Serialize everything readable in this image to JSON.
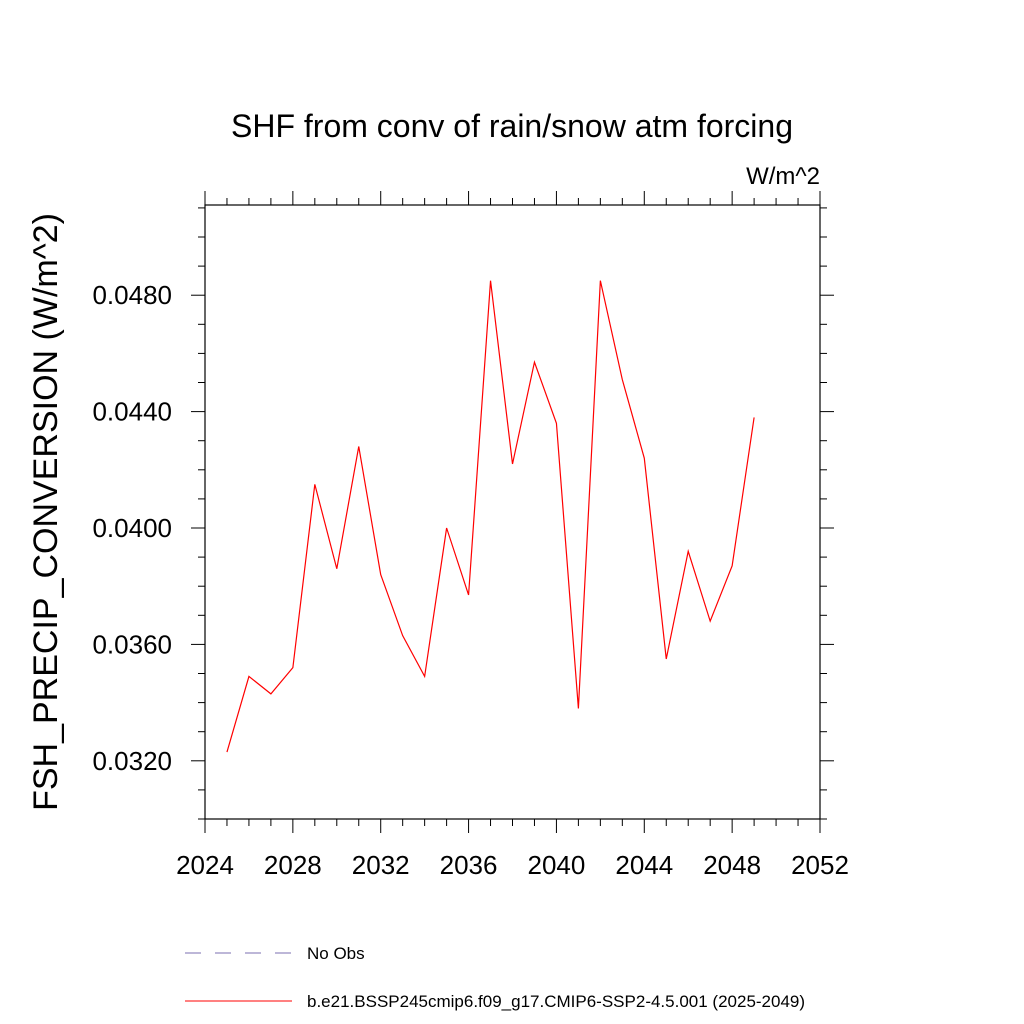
{
  "chart_data": {
    "type": "line",
    "title": "SHF from conv of rain/snow atm forcing",
    "units": "W/m^2",
    "ylabel": "FSH_PRECIP_CONVERSION  (W/m^2)",
    "xlabel": "",
    "xlim": [
      2024,
      2052
    ],
    "ylim": [
      0.03,
      0.0511
    ],
    "xticks": [
      2024,
      2028,
      2032,
      2036,
      2040,
      2044,
      2048,
      2052
    ],
    "yticks": [
      0.032,
      0.036,
      0.04,
      0.044,
      0.048
    ],
    "ytick_labels": [
      "0.0320",
      "0.0360",
      "0.0400",
      "0.0440",
      "0.0480"
    ],
    "series": [
      {
        "name": "b.e21.BSSP245cmip6.f09_g17.CMIP6-SSP2-4.5.001 (2025-2049)",
        "color": "#ff0000",
        "x": [
          2025,
          2026,
          2027,
          2028,
          2029,
          2030,
          2031,
          2032,
          2033,
          2034,
          2035,
          2036,
          2037,
          2038,
          2039,
          2040,
          2041,
          2042,
          2043,
          2044,
          2045,
          2046,
          2047,
          2048,
          2049
        ],
        "y": [
          0.0323,
          0.0349,
          0.0343,
          0.0352,
          0.0415,
          0.0386,
          0.0428,
          0.0384,
          0.0363,
          0.0349,
          0.04,
          0.0377,
          0.0485,
          0.0422,
          0.0457,
          0.0436,
          0.0338,
          0.0485,
          0.0451,
          0.0424,
          0.0355,
          0.0392,
          0.0368,
          0.0387,
          0.0438
        ]
      }
    ],
    "legend": {
      "placement": "bottom",
      "entries": [
        {
          "label": "No Obs",
          "color": "#7b6fb0",
          "style": "dashed"
        },
        {
          "label": "b.e21.BSSP245cmip6.f09_g17.CMIP6-SSP2-4.5.001 (2025-2049)",
          "color": "#ff0000",
          "style": "solid"
        }
      ]
    },
    "grid": false
  }
}
